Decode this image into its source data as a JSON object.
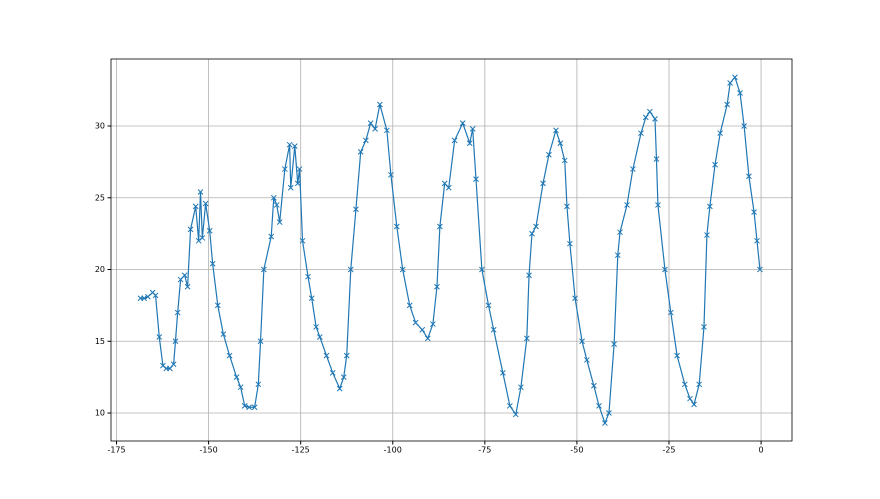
{
  "chart_data": {
    "type": "line",
    "marker": "x",
    "color": "#1f77b4",
    "grid": true,
    "x": [
      -168.5,
      -167.5,
      -166.5,
      -165.2,
      -164.4,
      -163.4,
      -162.4,
      -161.5,
      -160.5,
      -159.5,
      -159,
      -158.4,
      -157.6,
      -156.5,
      -155.7,
      -154.9,
      -153.5,
      -152.7,
      -152.2,
      -151.7,
      -150.8,
      -149.7,
      -148.9,
      -147.5,
      -146,
      -144.3,
      -142.4,
      -141.3,
      -140.2,
      -139,
      -137.5,
      -136.5,
      -135.9,
      -135,
      -133,
      -132.3,
      -131.5,
      -130.7,
      -129.3,
      -128,
      -127.7,
      -126.6,
      -125.8,
      -125.3,
      -124.5,
      -123,
      -122,
      -120.8,
      -119.8,
      -118,
      -116.3,
      -114.4,
      -113.3,
      -112.5,
      -111.4,
      -110,
      -108.7,
      -107.3,
      -106,
      -104.8,
      -103.5,
      -101.6,
      -100.5,
      -98.9,
      -97.3,
      -95.4,
      -93.8,
      -92,
      -90.5,
      -89.1,
      -88,
      -87.2,
      -85.9,
      -84.8,
      -83.2,
      -81,
      -79.1,
      -78.3,
      -77.4,
      -75.8,
      -74,
      -72.6,
      -70.1,
      -68.2,
      -66.6,
      -65.2,
      -63.6,
      -63,
      -62.2,
      -61.1,
      -59.2,
      -57.6,
      -55.7,
      -54.5,
      -53.3,
      -52.7,
      -51.9,
      -50.5,
      -48.6,
      -47.3,
      -45.4,
      -44,
      -42.4,
      -41.3,
      -39.9,
      -38.9,
      -38.3,
      -36.4,
      -34.8,
      -32.6,
      -31.3,
      -30.2,
      -28.8,
      -28.4,
      -28,
      -26.1,
      -24.5,
      -22.8,
      -20.7,
      -19.3,
      -18.2,
      -16.8,
      -15.5,
      -14.7,
      -13.9,
      -12.5,
      -11.1,
      -9.2,
      -8.4,
      -7.1,
      -5.7,
      -4.6,
      -3.3,
      -1.9,
      -1.1,
      -0.3
    ],
    "values": [
      18.0,
      18.0,
      18.1,
      18.4,
      18.2,
      15.3,
      13.3,
      13.1,
      13.1,
      13.4,
      15.0,
      17.0,
      19.3,
      19.6,
      18.8,
      22.8,
      24.4,
      22.0,
      25.4,
      22.2,
      24.6,
      22.7,
      20.4,
      17.5,
      15.5,
      14.0,
      12.5,
      11.8,
      10.5,
      10.4,
      10.4,
      12.0,
      15.0,
      20.0,
      22.3,
      25.0,
      24.5,
      23.3,
      27.0,
      28.7,
      25.7,
      28.6,
      26.0,
      27.0,
      22.0,
      19.5,
      18.0,
      16.0,
      15.3,
      14.0,
      12.8,
      11.7,
      12.5,
      14.0,
      20.0,
      24.2,
      28.2,
      29.0,
      30.2,
      29.8,
      31.5,
      29.7,
      26.6,
      23.0,
      20.0,
      17.5,
      16.3,
      15.8,
      15.2,
      16.2,
      18.8,
      23.0,
      26.0,
      25.7,
      29.0,
      30.2,
      28.8,
      29.8,
      26.3,
      20.0,
      17.5,
      15.8,
      12.8,
      10.5,
      9.9,
      11.8,
      15.2,
      19.6,
      22.5,
      23.0,
      26.0,
      28.0,
      29.7,
      28.8,
      27.6,
      24.4,
      21.8,
      18.0,
      15.0,
      13.7,
      11.9,
      10.5,
      9.3,
      10.0,
      14.8,
      21.0,
      22.6,
      24.5,
      27.0,
      29.5,
      30.6,
      31.0,
      30.5,
      27.7,
      24.5,
      20.0,
      17.0,
      14.0,
      12.0,
      11.0,
      10.6,
      12.0,
      16.0,
      22.4,
      24.4,
      27.3,
      29.5,
      31.5,
      33.0,
      33.4,
      32.3,
      30.0,
      26.5,
      24.0,
      22.0,
      20.0
    ],
    "xlim": [
      -176.5,
      8.4
    ],
    "ylim": [
      8.05,
      34.67
    ],
    "xticks": [
      -175,
      -150,
      -125,
      -100,
      -75,
      -50,
      -25,
      0
    ],
    "yticks": [
      10,
      15,
      20,
      25,
      30
    ]
  }
}
